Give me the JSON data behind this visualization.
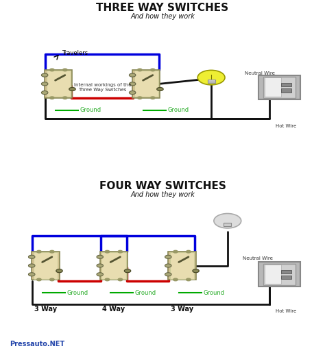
{
  "title_top": "THREE WAY SWITCHES",
  "subtitle_top": "And how they work",
  "title_bottom": "FOUR WAY SWITCHES",
  "subtitle_bottom": "And how they work",
  "bg_gray": "#aaaaaa",
  "bg_white_gap": "#ffffff",
  "text_black": "#111111",
  "text_green": "#22aa22",
  "wire_blue": "#0000dd",
  "wire_red": "#cc0000",
  "wire_black": "#111111",
  "wire_white": "#ffffff",
  "switch_color": "#d4c090",
  "switch_edge": "#888855",
  "panel_outer": "#999999",
  "panel_inner": "#cccccc",
  "neutral_label": "Neutral Wire",
  "hot_label": "Hot Wire",
  "ground_label": "Ground",
  "travelers_label": "Travelers",
  "internal_label": "Internal workings of the\nThree Way Switches",
  "watermark": "Pressauto.NET",
  "lw_wire": 2.0
}
